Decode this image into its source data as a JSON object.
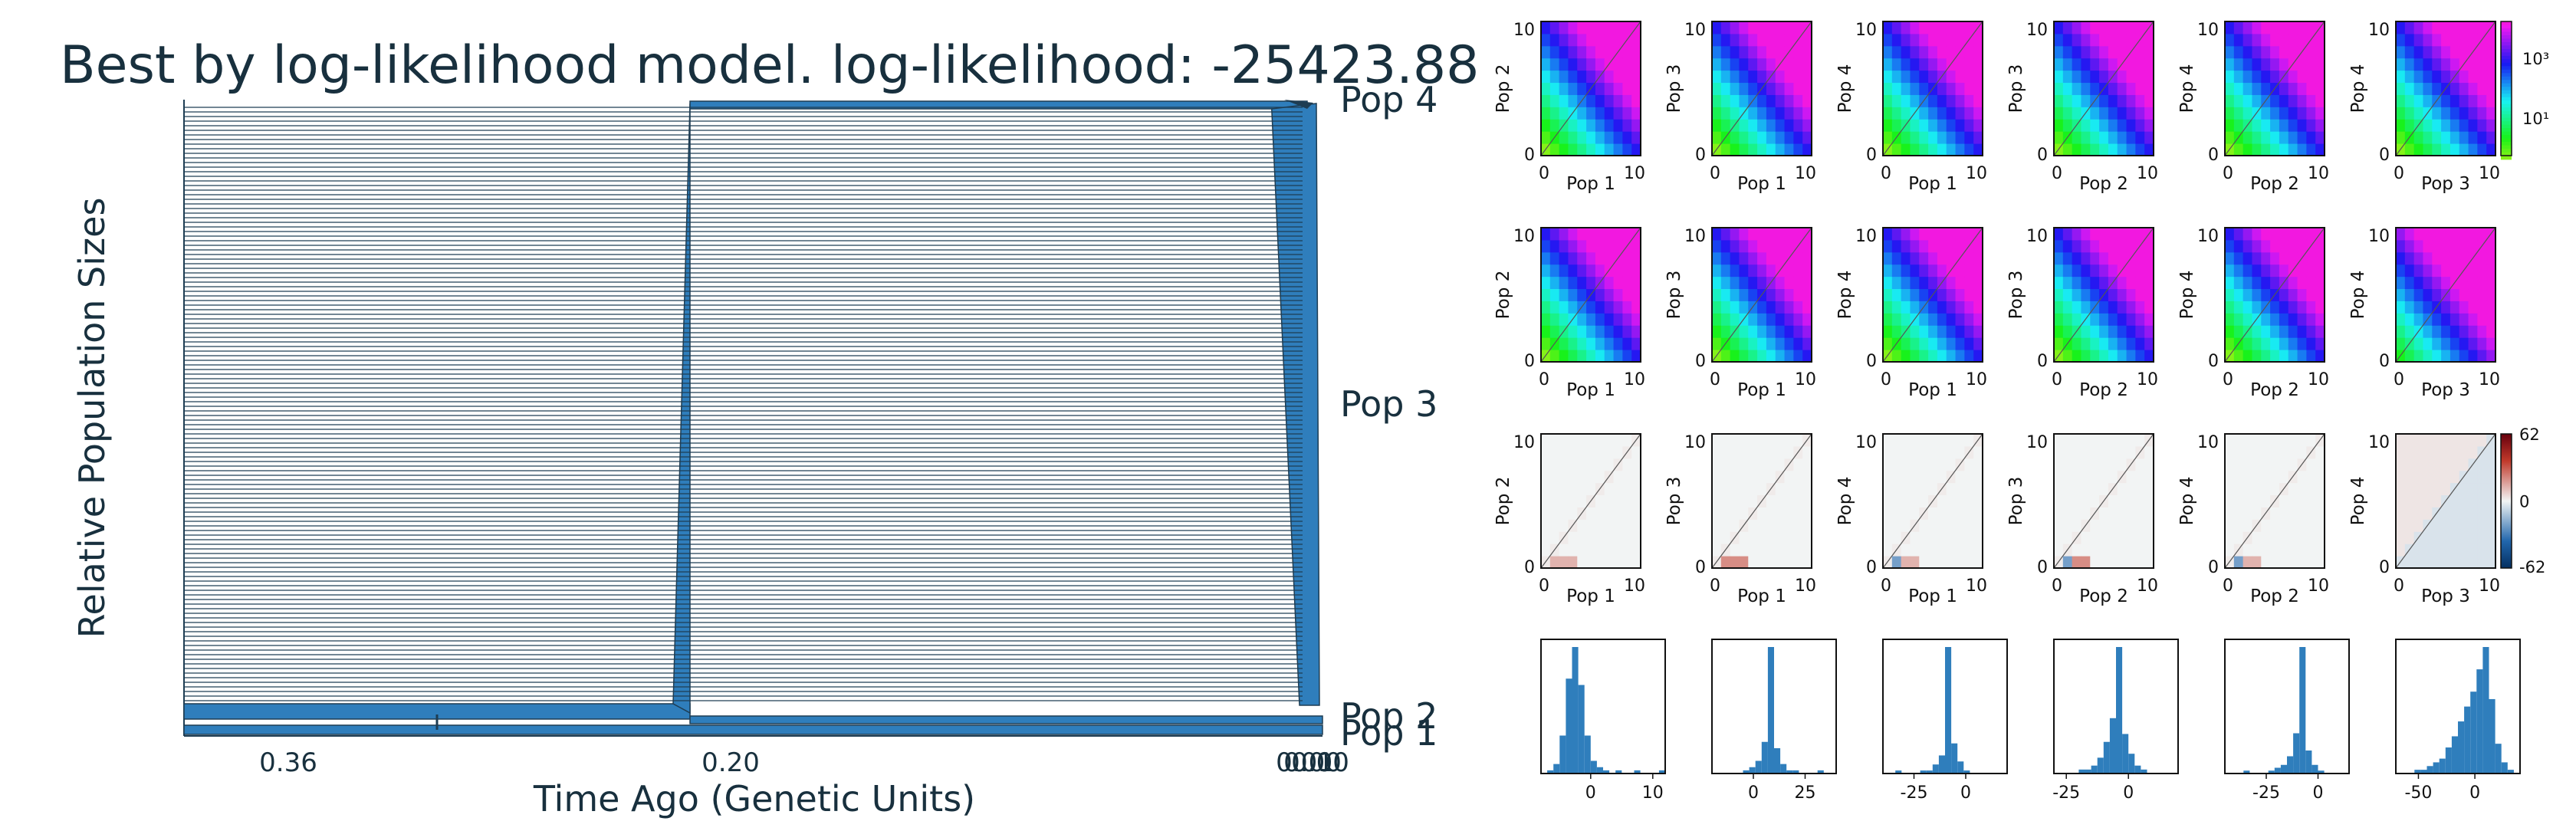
{
  "chart_data": [
    {
      "type": "area",
      "kind": "demographic-history",
      "title": "Best by log-likelihood model. log-likelihood: -25423.88",
      "xlabel": "Time Ago (Genetic Units)",
      "ylabel": "Relative Population Sizes",
      "x_ticks": [
        "0.36",
        "0.20",
        "0.01",
        "0.00",
        "0.00"
      ],
      "xlim": [
        0.36,
        0.0
      ],
      "populations": [
        "Pop 1",
        "Pop 2",
        "Pop 3",
        "Pop 4"
      ],
      "split_times": [
        0.36,
        0.2,
        0.01
      ],
      "migration_mark_time": 0.28,
      "colors": {
        "fill": "#2f7ebc",
        "edge": "#1e3d53",
        "text": "#18303e"
      }
    },
    {
      "type": "heatmap",
      "kind": "2d-sfs-grid",
      "rows": [
        "data",
        "model",
        "residuals"
      ],
      "panels": [
        {
          "xlabel": "Pop 1",
          "ylabel": "Pop 2"
        },
        {
          "xlabel": "Pop 1",
          "ylabel": "Pop 3"
        },
        {
          "xlabel": "Pop 1",
          "ylabel": "Pop 4"
        },
        {
          "xlabel": "Pop 2",
          "ylabel": "Pop 3"
        },
        {
          "xlabel": "Pop 2",
          "ylabel": "Pop 4"
        },
        {
          "xlabel": "Pop 3",
          "ylabel": "Pop 4"
        }
      ],
      "axis_ticks": [
        "0",
        "10"
      ],
      "colorbar_log_ticks": [
        "10³",
        "10¹"
      ],
      "colorbar_resid_ticks": [
        "62",
        "0",
        "-62"
      ],
      "resid_colors": {
        "pos": "#c0392b",
        "mid": "#f2f4f4",
        "neg": "#2166ac"
      }
    },
    {
      "type": "bar",
      "kind": "residual-histograms",
      "panels": [
        {
          "ticks": [
            "0",
            "10"
          ],
          "xlim": [
            -8,
            12
          ],
          "values": [
            0,
            1,
            3,
            12,
            30,
            40,
            28,
            12,
            4,
            2,
            1,
            0,
            1,
            0,
            0,
            1,
            0,
            0,
            0,
            1
          ]
        },
        {
          "ticks": [
            "0",
            "25"
          ],
          "xlim": [
            -20,
            40
          ],
          "values": [
            0,
            0,
            0,
            0,
            0,
            1,
            2,
            4,
            10,
            40,
            8,
            3,
            1,
            1,
            0,
            0,
            0,
            1,
            0,
            0
          ]
        },
        {
          "ticks": [
            "-25",
            "0"
          ],
          "xlim": [
            -40,
            20
          ],
          "values": [
            0,
            0,
            1,
            0,
            0,
            0,
            1,
            1,
            3,
            6,
            42,
            10,
            4,
            1,
            0,
            0,
            0,
            0,
            0,
            0
          ]
        },
        {
          "ticks": [
            "-25",
            "0"
          ],
          "xlim": [
            -30,
            20
          ],
          "values": [
            0,
            0,
            0,
            0,
            1,
            1,
            2,
            4,
            8,
            14,
            32,
            10,
            5,
            2,
            1,
            0,
            0,
            0,
            0,
            0
          ]
        },
        {
          "ticks": [
            "-25",
            "0"
          ],
          "xlim": [
            -45,
            15
          ],
          "values": [
            0,
            0,
            0,
            1,
            0,
            0,
            0,
            1,
            2,
            3,
            6,
            14,
            44,
            8,
            3,
            1,
            0,
            0,
            0,
            0
          ]
        },
        {
          "ticks": [
            "-50",
            "0"
          ],
          "xlim": [
            -70,
            40
          ],
          "values": [
            0,
            0,
            0,
            1,
            1,
            2,
            3,
            4,
            7,
            10,
            14,
            18,
            22,
            28,
            34,
            20,
            8,
            3,
            1,
            0
          ]
        }
      ],
      "bar_color": "#2f7ebc"
    }
  ]
}
